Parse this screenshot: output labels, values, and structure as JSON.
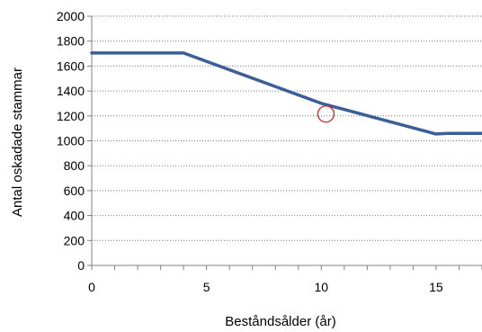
{
  "chart_data": {
    "type": "line",
    "xlabel": "Beståndsålder (år)",
    "ylabel": "Antal oskadade stammar",
    "xlim": [
      0,
      17
    ],
    "ylim": [
      0,
      2000
    ],
    "x_ticks": [
      0,
      5,
      10,
      15
    ],
    "y_ticks": [
      0,
      200,
      400,
      600,
      800,
      1000,
      1200,
      1400,
      1600,
      1800,
      2000
    ],
    "x_tick_labels": [
      "0",
      "5",
      "10",
      "15"
    ],
    "y_tick_labels": [
      "0",
      "200",
      "400",
      "600",
      "800",
      "1000",
      "1200",
      "1400",
      "1600",
      "1800",
      "2000"
    ],
    "grid": "horizontal dotted",
    "series": [
      {
        "color": "#3a5f96",
        "x": [
          0,
          3.5,
          4,
          10,
          15,
          15.5,
          17
        ],
        "y": [
          1705,
          1705,
          1705,
          1300,
          1055,
          1060,
          1060
        ]
      }
    ],
    "annotations": [
      {
        "type": "circle-marker",
        "x": 10.2,
        "y": 1215,
        "color": "#dd2222"
      }
    ]
  }
}
